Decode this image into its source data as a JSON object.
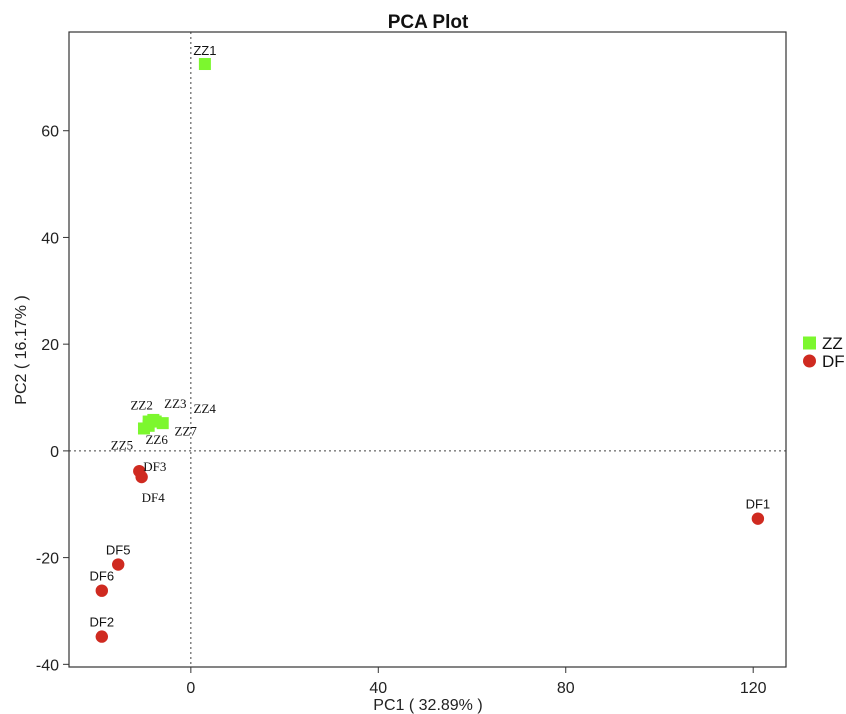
{
  "chart_data": {
    "type": "scatter",
    "title": "PCA Plot",
    "xlabel": "PC1 ( 32.89% )",
    "ylabel": "PC2 ( 16.17% )",
    "xlim": [
      -26,
      127
    ],
    "ylim": [
      -40.5,
      78.5
    ],
    "xticks": [
      0,
      40,
      80,
      120
    ],
    "yticks": [
      -40,
      -20,
      0,
      20,
      40,
      60
    ],
    "reference_lines": {
      "x": 0,
      "y": 0,
      "style": "dotted"
    },
    "legend_position": "right",
    "series": [
      {
        "name": "ZZ",
        "marker": "square",
        "color": "#7cf72e",
        "points": [
          {
            "label": "ZZ1",
            "x": 3,
            "y": 72.5
          },
          {
            "label": "ZZ2",
            "x": -9,
            "y": 5.5
          },
          {
            "label": "ZZ3",
            "x": -8,
            "y": 5.8
          },
          {
            "label": "ZZ4",
            "x": -6,
            "y": 5.2
          },
          {
            "label": "ZZ5",
            "x": -10,
            "y": 4.2
          },
          {
            "label": "ZZ6",
            "x": -9,
            "y": 4.7
          },
          {
            "label": "ZZ7",
            "x": -7.5,
            "y": 5.5
          }
        ]
      },
      {
        "name": "DF",
        "marker": "circle",
        "color": "#cf2a20",
        "points": [
          {
            "label": "DF1",
            "x": 121,
            "y": -12.7
          },
          {
            "label": "DF2",
            "x": -19,
            "y": -34.8
          },
          {
            "label": "DF3",
            "x": -11,
            "y": -3.8
          },
          {
            "label": "DF4",
            "x": -10.5,
            "y": -4.9
          },
          {
            "label": "DF5",
            "x": -15.5,
            "y": -21.3
          },
          {
            "label": "DF6",
            "x": -19,
            "y": -26.2
          }
        ]
      }
    ]
  }
}
